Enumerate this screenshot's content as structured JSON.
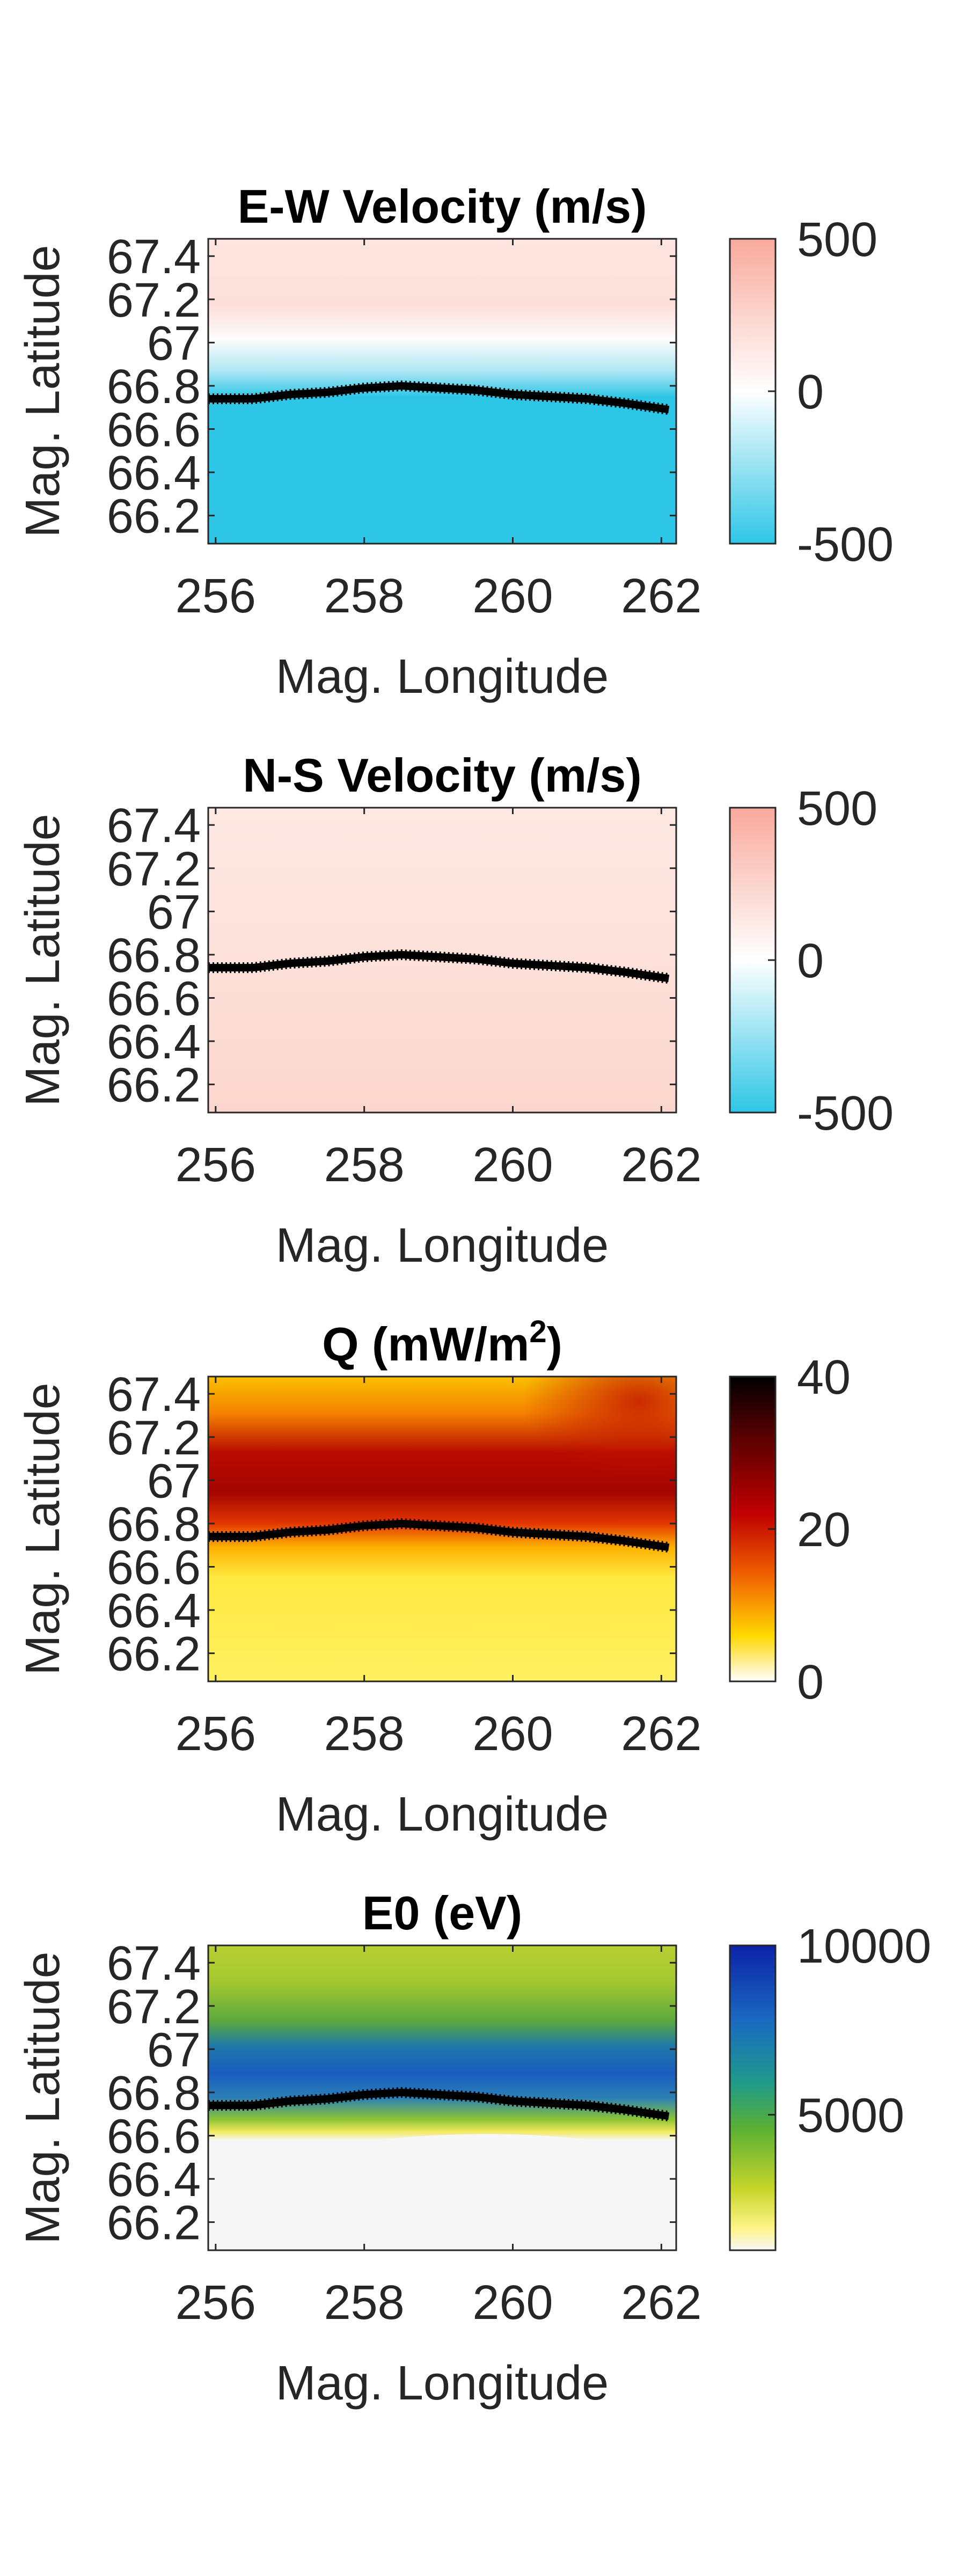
{
  "chart_data": [
    {
      "type": "heatmap",
      "title": "E-W Velocity (m/s)",
      "xlabel": "Mag. Longitude",
      "ylabel": "Mag. Latitude",
      "xlim": [
        255.9,
        262.2
      ],
      "ylim": [
        66.07,
        67.48
      ],
      "xticks": [
        "256",
        "258",
        "260",
        "262"
      ],
      "yticks": [
        "66.2",
        "66.4",
        "66.6",
        "66.8",
        "67",
        "67.2",
        "67.4"
      ],
      "colorbar": {
        "min": -500,
        "max": 500,
        "ticks": [
          "500",
          "0",
          "-500"
        ],
        "colormap": "diverging"
      },
      "field": "ew",
      "boundary": [
        [
          255.9,
          66.74
        ],
        [
          256.5,
          66.74
        ],
        [
          257,
          66.76
        ],
        [
          257.5,
          66.77
        ],
        [
          258,
          66.79
        ],
        [
          258.5,
          66.8
        ],
        [
          259,
          66.79
        ],
        [
          259.5,
          66.78
        ],
        [
          260,
          66.76
        ],
        [
          260.5,
          66.75
        ],
        [
          261,
          66.74
        ],
        [
          261.5,
          66.72
        ],
        [
          262.1,
          66.69
        ]
      ]
    },
    {
      "type": "heatmap",
      "title": "N-S Velocity (m/s)",
      "xlabel": "Mag. Longitude",
      "ylabel": "Mag. Latitude",
      "xlim": [
        255.9,
        262.2
      ],
      "ylim": [
        66.07,
        67.48
      ],
      "xticks": [
        "256",
        "258",
        "260",
        "262"
      ],
      "yticks": [
        "66.2",
        "66.4",
        "66.6",
        "66.8",
        "67",
        "67.2",
        "67.4"
      ],
      "colorbar": {
        "min": -500,
        "max": 500,
        "ticks": [
          "500",
          "0",
          "-500"
        ],
        "colormap": "diverging"
      },
      "field": "ns",
      "boundary": [
        [
          255.9,
          66.74
        ],
        [
          256.5,
          66.74
        ],
        [
          257,
          66.76
        ],
        [
          257.5,
          66.77
        ],
        [
          258,
          66.79
        ],
        [
          258.5,
          66.8
        ],
        [
          259,
          66.79
        ],
        [
          259.5,
          66.78
        ],
        [
          260,
          66.76
        ],
        [
          260.5,
          66.75
        ],
        [
          261,
          66.74
        ],
        [
          261.5,
          66.72
        ],
        [
          262.1,
          66.69
        ]
      ]
    },
    {
      "type": "heatmap",
      "title": "Q (mW/m",
      "title_sup": "2",
      "title_end": ")",
      "xlabel": "Mag. Longitude",
      "ylabel": "Mag. Latitude",
      "xlim": [
        255.9,
        262.2
      ],
      "ylim": [
        66.07,
        67.48
      ],
      "xticks": [
        "256",
        "258",
        "260",
        "262"
      ],
      "yticks": [
        "66.2",
        "66.4",
        "66.6",
        "66.8",
        "67",
        "67.2",
        "67.4"
      ],
      "colorbar": {
        "min": 0,
        "max": 40,
        "ticks": [
          "40",
          "20",
          "0"
        ],
        "colormap": "hot"
      },
      "field": "q",
      "boundary": [
        [
          255.9,
          66.74
        ],
        [
          256.5,
          66.74
        ],
        [
          257,
          66.76
        ],
        [
          257.5,
          66.77
        ],
        [
          258,
          66.79
        ],
        [
          258.5,
          66.8
        ],
        [
          259,
          66.79
        ],
        [
          259.5,
          66.78
        ],
        [
          260,
          66.76
        ],
        [
          260.5,
          66.75
        ],
        [
          261,
          66.74
        ],
        [
          261.5,
          66.72
        ],
        [
          262.1,
          66.69
        ]
      ]
    },
    {
      "type": "heatmap",
      "title": "E0 (eV)",
      "xlabel": "Mag. Longitude",
      "ylabel": "Mag. Latitude",
      "xlim": [
        255.9,
        262.2
      ],
      "ylim": [
        66.07,
        67.48
      ],
      "xticks": [
        "256",
        "258",
        "260",
        "262"
      ],
      "yticks": [
        "66.2",
        "66.4",
        "66.6",
        "66.8",
        "67",
        "67.2",
        "67.4"
      ],
      "colorbar": {
        "min": 1000,
        "max": 10000,
        "ticks": [
          "10000",
          "5000"
        ],
        "colormap": "parula-like"
      },
      "field": "e0",
      "boundary": [
        [
          255.9,
          66.74
        ],
        [
          256.5,
          66.74
        ],
        [
          257,
          66.76
        ],
        [
          257.5,
          66.77
        ],
        [
          258,
          66.79
        ],
        [
          258.5,
          66.8
        ],
        [
          259,
          66.79
        ],
        [
          259.5,
          66.78
        ],
        [
          260,
          66.76
        ],
        [
          260.5,
          66.75
        ],
        [
          261,
          66.74
        ],
        [
          261.5,
          66.72
        ],
        [
          262.1,
          66.69
        ]
      ]
    }
  ]
}
